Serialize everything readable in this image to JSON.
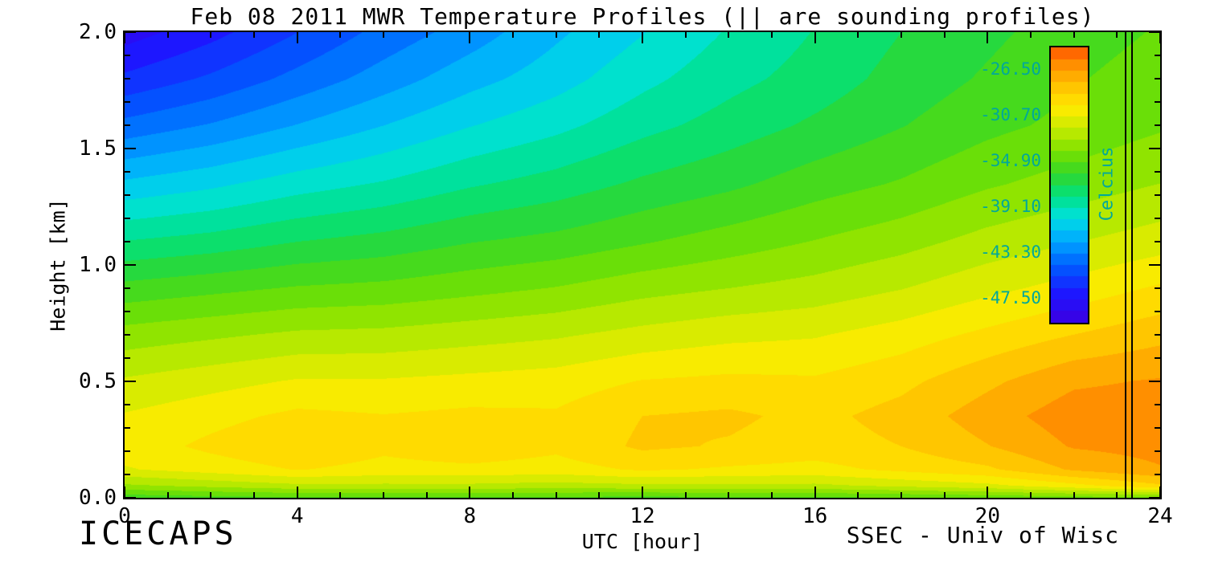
{
  "chart_data": {
    "type": "heatmap",
    "title": "Feb 08 2011 MWR Temperature Profiles (|| are sounding profiles)",
    "xlabel": "UTC [hour]",
    "ylabel": "Height [km]",
    "xlim": [
      0,
      24
    ],
    "ylim": [
      0.0,
      2.0
    ],
    "x_major_ticks": [
      0,
      4,
      8,
      12,
      16,
      20,
      24
    ],
    "x_tick_labels": [
      "0",
      "4",
      "8",
      "12",
      "16",
      "20",
      "24"
    ],
    "x_minor_step": 1,
    "y_major_ticks": [
      0.0,
      0.5,
      1.0,
      1.5,
      2.0
    ],
    "y_tick_labels": [
      "0.0",
      "0.5",
      "1.0",
      "1.5",
      "2.0"
    ],
    "y_minor_step": 0.1,
    "grid_lines": false,
    "sounding_hours": [
      23.2,
      23.35
    ],
    "colorbar": {
      "unit": "Celcius",
      "tick_labels": [
        "-26.50",
        "-30.70",
        "-34.90",
        "-39.10",
        "-43.30",
        "-47.50"
      ],
      "tick_values": [
        -26.5,
        -30.7,
        -34.9,
        -39.1,
        -43.3,
        -47.5
      ],
      "vmin": -49.6,
      "vmax": -24.4,
      "levels": 24,
      "label_color": "#00a89b"
    },
    "colormap": [
      {
        "pos": 0.0,
        "rgb": [
          60,
          0,
          225
        ]
      },
      {
        "pos": 0.1,
        "rgb": [
          30,
          20,
          255
        ]
      },
      {
        "pos": 0.2,
        "rgb": [
          0,
          90,
          255
        ]
      },
      {
        "pos": 0.3,
        "rgb": [
          0,
          170,
          255
        ]
      },
      {
        "pos": 0.38,
        "rgb": [
          0,
          225,
          225
        ]
      },
      {
        "pos": 0.46,
        "rgb": [
          0,
          225,
          130
        ]
      },
      {
        "pos": 0.54,
        "rgb": [
          50,
          215,
          40
        ]
      },
      {
        "pos": 0.62,
        "rgb": [
          120,
          225,
          0
        ]
      },
      {
        "pos": 0.7,
        "rgb": [
          195,
          235,
          0
        ]
      },
      {
        "pos": 0.78,
        "rgb": [
          255,
          235,
          0
        ]
      },
      {
        "pos": 0.86,
        "rgb": [
          255,
          195,
          0
        ]
      },
      {
        "pos": 0.93,
        "rgb": [
          255,
          150,
          0
        ]
      },
      {
        "pos": 1.0,
        "rgb": [
          255,
          85,
          0
        ]
      }
    ],
    "grid": {
      "hours": [
        0,
        2,
        4,
        6,
        8,
        10,
        12,
        14,
        16,
        18,
        20,
        22,
        24
      ],
      "heights": [
        0.0,
        0.05,
        0.12,
        0.22,
        0.35,
        0.5,
        0.7,
        0.9,
        1.1,
        1.35,
        1.6,
        1.8,
        2.0
      ],
      "temperature": [
        [
          -35.5,
          -35.2,
          -35.0,
          -35.0,
          -35.0,
          -35.0,
          -35.2,
          -35.0,
          -35.0,
          -34.8,
          -34.5,
          -34.2,
          -34.0
        ],
        [
          -33.0,
          -32.5,
          -32.0,
          -32.0,
          -32.0,
          -32.2,
          -32.0,
          -32.0,
          -32.0,
          -31.5,
          -31.0,
          -30.0,
          -28.8
        ],
        [
          -30.8,
          -30.2,
          -29.6,
          -30.0,
          -29.9,
          -30.1,
          -29.5,
          -29.8,
          -30.0,
          -29.4,
          -28.8,
          -27.4,
          -26.6
        ],
        [
          -30.2,
          -29.4,
          -28.7,
          -29.4,
          -28.9,
          -29.4,
          -28.4,
          -28.7,
          -29.1,
          -28.6,
          -27.6,
          -26.4,
          -26.1
        ],
        [
          -30.6,
          -30.0,
          -29.4,
          -29.6,
          -29.4,
          -29.5,
          -28.6,
          -28.4,
          -28.9,
          -28.2,
          -27.0,
          -25.9,
          -25.8
        ],
        [
          -31.6,
          -31.1,
          -30.6,
          -30.6,
          -30.4,
          -30.2,
          -29.6,
          -29.4,
          -29.5,
          -28.9,
          -27.8,
          -26.7,
          -26.4
        ],
        [
          -33.4,
          -33.0,
          -32.6,
          -32.5,
          -32.2,
          -31.9,
          -31.4,
          -31.0,
          -30.8,
          -30.2,
          -29.4,
          -28.6,
          -27.9
        ],
        [
          -35.6,
          -35.2,
          -34.8,
          -34.6,
          -34.2,
          -33.8,
          -33.2,
          -32.8,
          -32.4,
          -31.8,
          -31.0,
          -30.3,
          -29.5
        ],
        [
          -38.0,
          -37.6,
          -37.0,
          -36.6,
          -36.0,
          -35.6,
          -35.0,
          -34.4,
          -33.8,
          -33.2,
          -32.4,
          -31.8,
          -31.2
        ],
        [
          -41.0,
          -40.4,
          -39.6,
          -39.0,
          -38.2,
          -37.6,
          -36.8,
          -36.2,
          -35.4,
          -34.8,
          -34.0,
          -33.4,
          -32.8
        ],
        [
          -44.0,
          -43.2,
          -42.2,
          -41.2,
          -40.2,
          -39.4,
          -38.4,
          -37.6,
          -36.8,
          -36.0,
          -35.2,
          -34.6,
          -34.0
        ],
        [
          -46.2,
          -45.2,
          -44.0,
          -42.8,
          -41.6,
          -40.6,
          -39.4,
          -38.4,
          -37.6,
          -36.6,
          -35.8,
          -35.0,
          -34.4
        ],
        [
          -48.0,
          -46.8,
          -45.4,
          -44.0,
          -42.8,
          -41.4,
          -40.2,
          -39.0,
          -38.0,
          -37.0,
          -36.2,
          -35.4,
          -34.8
        ]
      ]
    }
  },
  "colors": {
    "background": "#ffffff",
    "axis": "#000000",
    "colorbar_label": "#00a89b"
  },
  "footer": {
    "left": "ICECAPS",
    "right": "SSEC - Univ of Wisc"
  }
}
